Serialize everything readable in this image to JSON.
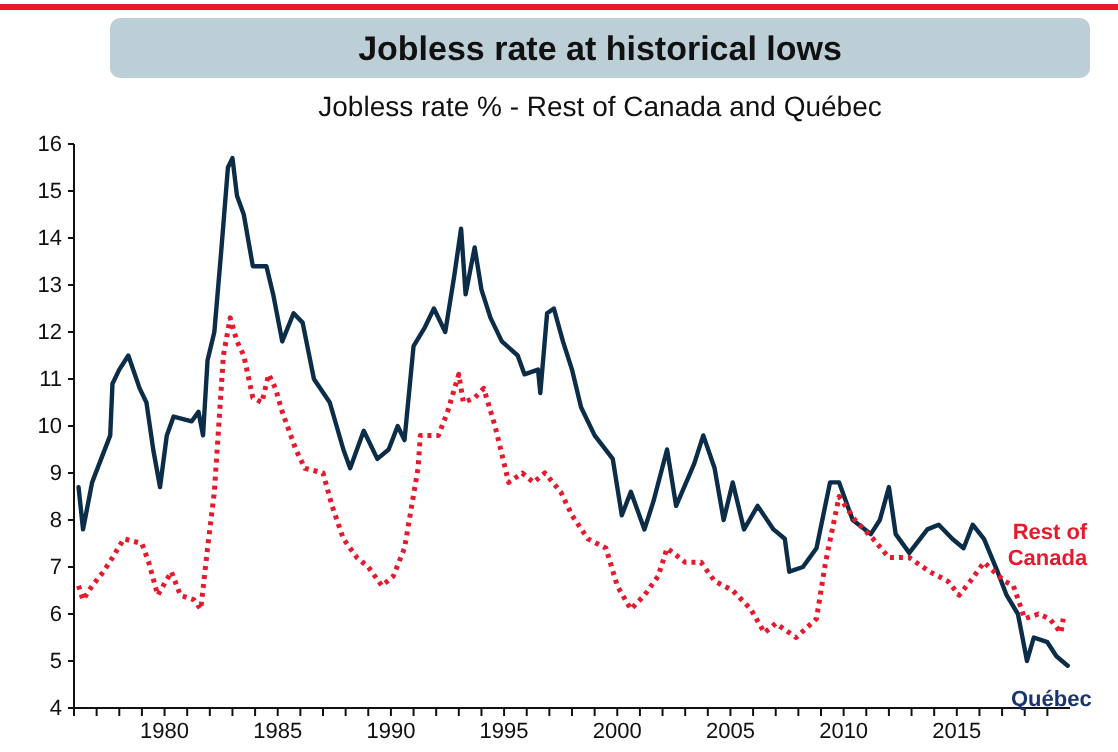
{
  "chart_data": {
    "type": "line",
    "title": "Jobless rate at historical lows",
    "subtitle": "Jobless rate % - Rest of Canada and Québec",
    "xlim": [
      1976,
      2020
    ],
    "ylim": [
      4,
      16
    ],
    "yticks": [
      4,
      5,
      6,
      7,
      8,
      9,
      10,
      11,
      12,
      13,
      14,
      15,
      16
    ],
    "xticks": [
      {
        "value": 1976,
        "label": null
      },
      {
        "value": 1977,
        "label": null
      },
      {
        "value": 1978,
        "label": null
      },
      {
        "value": 1979,
        "label": null
      },
      1980,
      {
        "value": 1981,
        "label": null
      },
      {
        "value": 1982,
        "label": null
      },
      {
        "value": 1983,
        "label": null
      },
      {
        "value": 1984,
        "label": null
      },
      1985,
      {
        "value": 1986,
        "label": null
      },
      {
        "value": 1987,
        "label": null
      },
      {
        "value": 1988,
        "label": null
      },
      {
        "value": 1989,
        "label": null
      },
      1990,
      {
        "value": 1991,
        "label": null
      },
      {
        "value": 1992,
        "label": null
      },
      {
        "value": 1993,
        "label": null
      },
      {
        "value": 1994,
        "label": null
      },
      1995,
      {
        "value": 1996,
        "label": null
      },
      {
        "value": 1997,
        "label": null
      },
      {
        "value": 1998,
        "label": null
      },
      {
        "value": 1999,
        "label": null
      },
      2000,
      {
        "value": 2001,
        "label": null
      },
      {
        "value": 2002,
        "label": null
      },
      {
        "value": 2003,
        "label": null
      },
      {
        "value": 2004,
        "label": null
      },
      2005,
      {
        "value": 2006,
        "label": null
      },
      {
        "value": 2007,
        "label": null
      },
      {
        "value": 2008,
        "label": null
      },
      {
        "value": 2009,
        "label": null
      },
      2010,
      {
        "value": 2011,
        "label": null
      },
      {
        "value": 2012,
        "label": null
      },
      {
        "value": 2013,
        "label": null
      },
      {
        "value": 2014,
        "label": null
      },
      2015,
      {
        "value": 2016,
        "label": null
      },
      {
        "value": 2017,
        "label": null
      },
      {
        "value": 2018,
        "label": null
      },
      {
        "value": 2019,
        "label": null
      }
    ],
    "series": [
      {
        "name": "Québec",
        "color": "#0c2d48",
        "line_style": "solid",
        "x": [
          1976.2,
          1976.4,
          1976.8,
          1977.2,
          1977.6,
          1977.7,
          1978.0,
          1978.4,
          1978.9,
          1979.2,
          1979.5,
          1979.8,
          1980.1,
          1980.4,
          1981.2,
          1981.5,
          1981.7,
          1981.9,
          1982.2,
          1982.5,
          1982.8,
          1983.0,
          1983.2,
          1983.5,
          1983.9,
          1984.5,
          1984.8,
          1985.2,
          1985.7,
          1986.1,
          1986.6,
          1987.3,
          1987.9,
          1988.2,
          1988.8,
          1989.4,
          1989.9,
          1990.3,
          1990.6,
          1991.0,
          1991.5,
          1991.9,
          1992.4,
          1992.8,
          1993.1,
          1993.3,
          1993.7,
          1994.0,
          1994.4,
          1994.9,
          1995.6,
          1995.9,
          1996.5,
          1996.6,
          1996.9,
          1997.2,
          1997.6,
          1998.0,
          1998.4,
          1999.0,
          1999.8,
          2000.2,
          2000.6,
          2001.2,
          2001.6,
          2002.2,
          2002.6,
          2003.4,
          2003.8,
          2004.3,
          2004.7,
          2005.1,
          2005.6,
          2006.2,
          2006.9,
          2007.4,
          2007.6,
          2008.2,
          2008.8,
          2009.4,
          2009.8,
          2010.4,
          2011.2,
          2011.6,
          2012.0,
          2012.3,
          2012.9,
          2013.7,
          2014.2,
          2014.8,
          2015.3,
          2015.7,
          2016.2,
          2016.8,
          2017.2,
          2017.7,
          2018.1,
          2018.4,
          2019.0,
          2019.4,
          2019.9
        ],
        "values": [
          8.7,
          7.8,
          8.8,
          9.3,
          9.8,
          10.9,
          11.2,
          11.5,
          10.8,
          10.5,
          9.5,
          8.7,
          9.8,
          10.2,
          10.1,
          10.3,
          9.8,
          11.4,
          12.0,
          13.7,
          15.5,
          15.7,
          14.9,
          14.5,
          13.4,
          13.4,
          12.8,
          11.8,
          12.4,
          12.2,
          11.0,
          10.5,
          9.5,
          9.1,
          9.9,
          9.3,
          9.5,
          10.0,
          9.7,
          11.7,
          12.1,
          12.5,
          12.0,
          13.2,
          14.2,
          12.8,
          13.8,
          12.9,
          12.3,
          11.8,
          11.5,
          11.1,
          11.2,
          10.7,
          12.4,
          12.5,
          11.8,
          11.2,
          10.4,
          9.8,
          9.3,
          8.1,
          8.6,
          7.8,
          8.4,
          9.5,
          8.3,
          9.2,
          9.8,
          9.1,
          8.0,
          8.8,
          7.8,
          8.3,
          7.8,
          7.6,
          6.9,
          7.0,
          7.4,
          8.8,
          8.8,
          8.0,
          7.7,
          8.0,
          8.7,
          7.7,
          7.3,
          7.8,
          7.9,
          7.6,
          7.4,
          7.9,
          7.6,
          6.9,
          6.4,
          6.0,
          5.0,
          5.5,
          5.4,
          5.1,
          4.9
        ]
      },
      {
        "name": "Rest of Canada",
        "color": "#e8192c",
        "line_style": "dotted",
        "x": [
          1976.2,
          1976.4,
          1976.8,
          1977.3,
          1977.7,
          1978.2,
          1979.0,
          1979.3,
          1979.7,
          1980.3,
          1980.7,
          1981.3,
          1981.6,
          1981.9,
          1982.2,
          1982.6,
          1982.9,
          1983.2,
          1983.5,
          1983.9,
          1984.3,
          1984.6,
          1984.9,
          1985.2,
          1985.8,
          1986.2,
          1987.0,
          1987.4,
          1987.9,
          1988.5,
          1989.0,
          1989.6,
          1990.1,
          1990.6,
          1991.2,
          1991.3,
          1992.1,
          1992.5,
          1993.0,
          1993.2,
          1993.7,
          1994.1,
          1994.6,
          1995.2,
          1995.8,
          1996.3,
          1996.8,
          1997.5,
          1998.0,
          1998.7,
          1999.5,
          2000.0,
          2000.6,
          2001.2,
          2001.8,
          2002.2,
          2003.0,
          2003.7,
          2004.3,
          2005.1,
          2005.9,
          2006.5,
          2007.0,
          2007.9,
          2008.8,
          2009.2,
          2009.8,
          2010.5,
          2011.3,
          2012.0,
          2012.9,
          2013.8,
          2014.6,
          2015.1,
          2015.6,
          2016.2,
          2017.1,
          2017.5,
          2018.0,
          2018.6,
          2019.1,
          2019.6,
          2019.7
        ],
        "values": [
          6.6,
          6.3,
          6.6,
          6.9,
          7.2,
          7.6,
          7.5,
          7.1,
          6.4,
          6.9,
          6.4,
          6.3,
          6.1,
          7.4,
          8.6,
          11.5,
          12.3,
          11.8,
          11.5,
          10.6,
          10.5,
          11.1,
          10.8,
          10.3,
          9.5,
          9.1,
          9.0,
          8.3,
          7.6,
          7.2,
          7.0,
          6.6,
          6.8,
          7.4,
          9.1,
          9.8,
          9.8,
          10.3,
          11.1,
          10.5,
          10.6,
          10.8,
          10.0,
          8.8,
          9.0,
          8.8,
          9.0,
          8.6,
          8.1,
          7.6,
          7.4,
          6.6,
          6.1,
          6.4,
          6.8,
          7.4,
          7.1,
          7.1,
          6.7,
          6.5,
          6.1,
          5.6,
          5.8,
          5.5,
          5.9,
          7.1,
          8.5,
          8.0,
          7.6,
          7.2,
          7.2,
          6.9,
          6.7,
          6.4,
          6.7,
          7.1,
          6.7,
          6.6,
          5.9,
          6.0,
          5.9,
          5.6,
          5.9
        ]
      }
    ]
  }
}
